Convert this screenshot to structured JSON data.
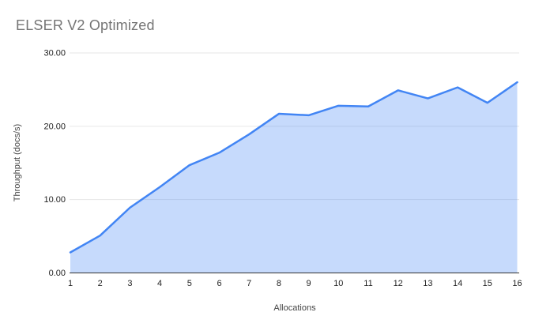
{
  "chart_data": {
    "type": "area",
    "title": "ELSER V2 Optimized",
    "xlabel": "Allocations",
    "ylabel": "Throughput (docs/s)",
    "x": [
      1,
      2,
      3,
      4,
      5,
      6,
      7,
      8,
      9,
      10,
      11,
      12,
      13,
      14,
      15,
      16
    ],
    "values": [
      2.8,
      5.1,
      8.9,
      11.7,
      14.7,
      16.4,
      18.9,
      21.7,
      21.5,
      22.8,
      22.7,
      24.9,
      23.8,
      25.3,
      23.2,
      26.0
    ],
    "series_name": "Throughput (docs/s)",
    "ylim": [
      0,
      30
    ],
    "yticks": [
      {
        "value": 0,
        "label": "0.00"
      },
      {
        "value": 10,
        "label": "10.00"
      },
      {
        "value": 20,
        "label": "20.00"
      },
      {
        "value": 30,
        "label": "30.00"
      }
    ],
    "xticks": [
      "1",
      "2",
      "3",
      "4",
      "5",
      "6",
      "7",
      "8",
      "9",
      "10",
      "11",
      "12",
      "13",
      "14",
      "15",
      "16"
    ],
    "grid": true,
    "legend_position": "none",
    "colors": {
      "line": "#4285f4",
      "fill": "rgba(66,133,244,0.30)",
      "gridline": "#e6e6e6",
      "axis_line": "#333333",
      "title_text": "#757575",
      "tick_text": "#222222",
      "axis_label_text": "#444444"
    }
  }
}
